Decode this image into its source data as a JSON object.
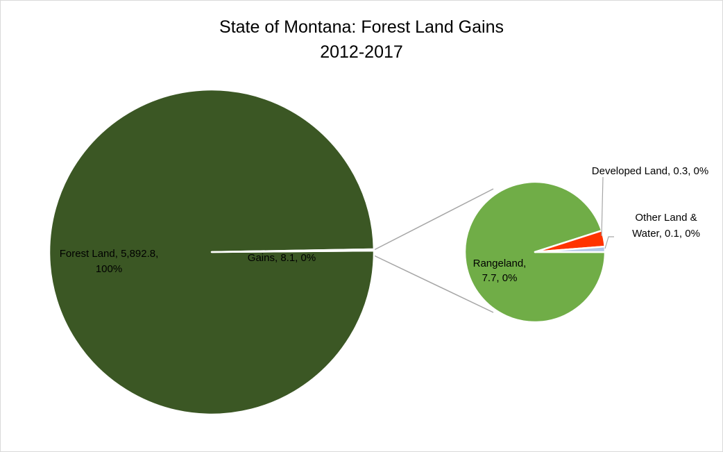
{
  "chart_data": {
    "type": "pie",
    "subtype": "pie-of-pie",
    "title": "State of Montana: Forest Land Gains",
    "subtitle": "2012-2017",
    "main_pie": {
      "slices": [
        {
          "name": "Forest Land",
          "value": 5892.8,
          "value_label": "5,892.8",
          "percent": "100%",
          "color": "#3B5724"
        },
        {
          "name": "Gains",
          "value": 8.1,
          "value_label": "8.1",
          "percent": "0%",
          "color": "#3B5724"
        }
      ]
    },
    "secondary_pie": {
      "slices": [
        {
          "name": "Rangeland",
          "value": 7.7,
          "value_label": "7.7",
          "percent": "0%",
          "color": "#70AD47"
        },
        {
          "name": "Developed Land",
          "value": 0.3,
          "value_label": "0.3",
          "percent": "0%",
          "color": "#FF3300"
        },
        {
          "name": "Other Land & Water",
          "value": 0.1,
          "value_label": "0.1",
          "percent": "0%",
          "color": "#B4C7E7"
        }
      ]
    },
    "labels": {
      "forest": {
        "line1": "Forest Land, 5,892.8,",
        "line2": "100%"
      },
      "gains": "Gains, 8.1, 0%",
      "rangeland": {
        "line1": "Rangeland,",
        "line2": "7.7, 0%"
      },
      "developed": "Developed Land, 0.3, 0%",
      "other": {
        "line1": "Other Land &",
        "line2": "Water, 0.1, 0%"
      }
    }
  }
}
